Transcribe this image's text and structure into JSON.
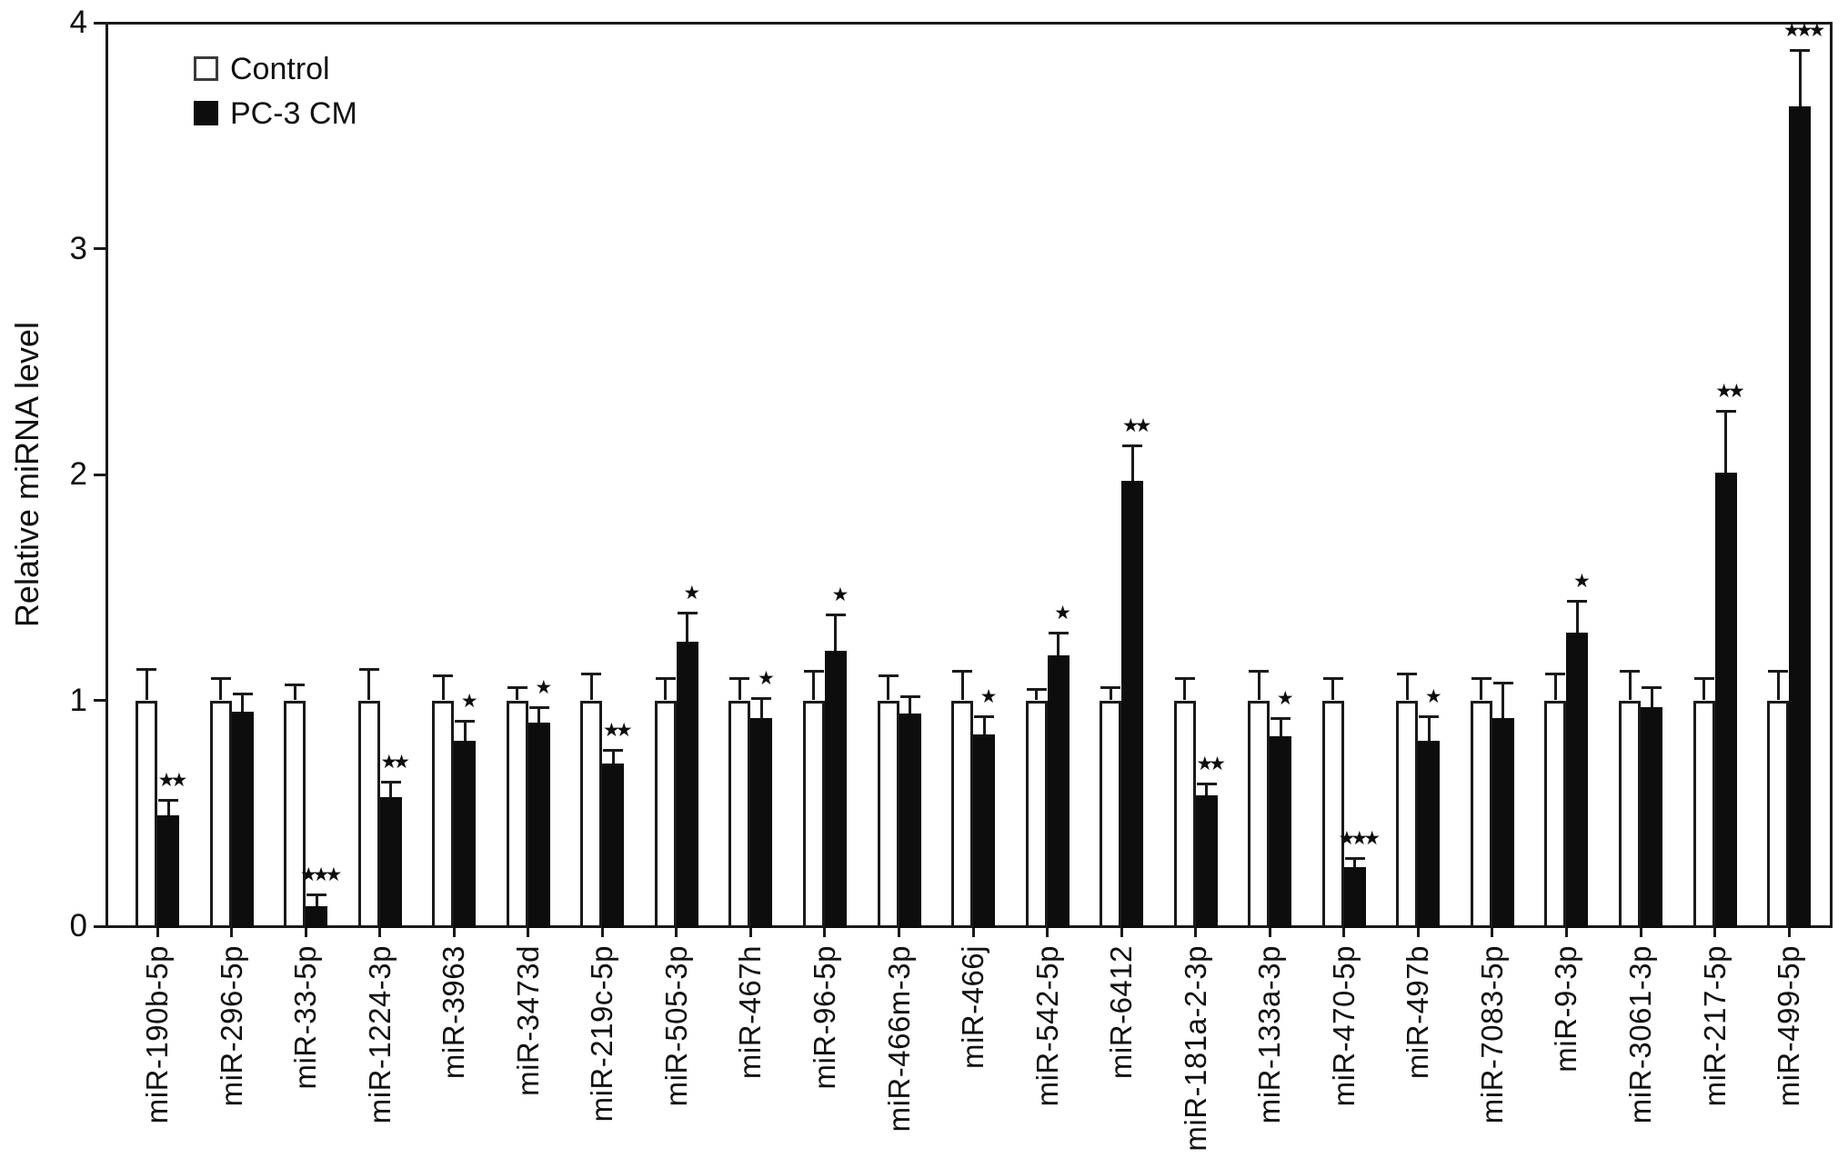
{
  "figure": {
    "ylabel": "Relative miRNA level"
  },
  "legend": {
    "items": [
      {
        "label": "Control",
        "swatch": "white"
      },
      {
        "label": "PC-3 CM",
        "swatch": "black"
      }
    ]
  },
  "colors": {
    "bar_black": "#0d0d0d",
    "bar_white": "#ffffff",
    "line": "#1a1a1a",
    "text": "#111111"
  },
  "chart_data": {
    "type": "bar",
    "title": "",
    "xlabel": "",
    "ylabel": "Relative miRNA level",
    "ylim": [
      0,
      4
    ],
    "yticks": [
      0,
      1,
      2,
      3,
      4
    ],
    "grid": false,
    "legend_position": "top-left-inside",
    "error_bars": "upper-with-cap",
    "significance_marker_glyph": "★",
    "categories": [
      "miR-190b-5p",
      "miR-296-5p",
      "miR-33-5p",
      "miR-1224-3p",
      "miR-3963",
      "miR-3473d",
      "miR-219c-5p",
      "miR-505-3p",
      "miR-467h",
      "miR-96-5p",
      "miR-466m-3p",
      "miR-466j",
      "miR-542-5p",
      "miR-6412",
      "miR-181a-2-3p",
      "miR-133a-3p",
      "miR-470-5p",
      "miR-497b",
      "miR-7083-5p",
      "miR-9-3p",
      "miR-3061-3p",
      "miR-217-5p",
      "miR-499-5p"
    ],
    "series": [
      {
        "name": "Control",
        "color": "#ffffff",
        "values": [
          1.0,
          1.0,
          1.0,
          1.0,
          1.0,
          1.0,
          1.0,
          1.0,
          1.0,
          1.0,
          1.0,
          1.0,
          1.0,
          1.0,
          1.0,
          1.0,
          1.0,
          1.0,
          1.0,
          1.0,
          1.0,
          1.0,
          1.0
        ],
        "errors": [
          0.14,
          0.1,
          0.07,
          0.14,
          0.11,
          0.06,
          0.12,
          0.1,
          0.1,
          0.13,
          0.11,
          0.13,
          0.05,
          0.06,
          0.1,
          0.13,
          0.1,
          0.12,
          0.1,
          0.12,
          0.13,
          0.1,
          0.13
        ]
      },
      {
        "name": "PC-3 CM",
        "color": "#0d0d0d",
        "values": [
          0.49,
          0.95,
          0.09,
          0.57,
          0.82,
          0.9,
          0.72,
          1.26,
          0.92,
          1.22,
          0.94,
          0.85,
          1.2,
          1.97,
          0.58,
          0.84,
          0.26,
          0.82,
          0.92,
          1.3,
          0.97,
          2.01,
          3.63
        ],
        "errors": [
          0.07,
          0.08,
          0.05,
          0.07,
          0.09,
          0.07,
          0.06,
          0.13,
          0.09,
          0.16,
          0.08,
          0.08,
          0.1,
          0.16,
          0.05,
          0.08,
          0.04,
          0.11,
          0.16,
          0.14,
          0.09,
          0.27,
          0.25
        ]
      }
    ],
    "significance": [
      "**",
      "",
      "***",
      "**",
      "*",
      "*",
      "**",
      "*",
      "*",
      "*",
      "",
      "*",
      "*",
      "**",
      "**",
      "*",
      "***",
      "*",
      "",
      "*",
      "",
      "**",
      "***"
    ]
  }
}
